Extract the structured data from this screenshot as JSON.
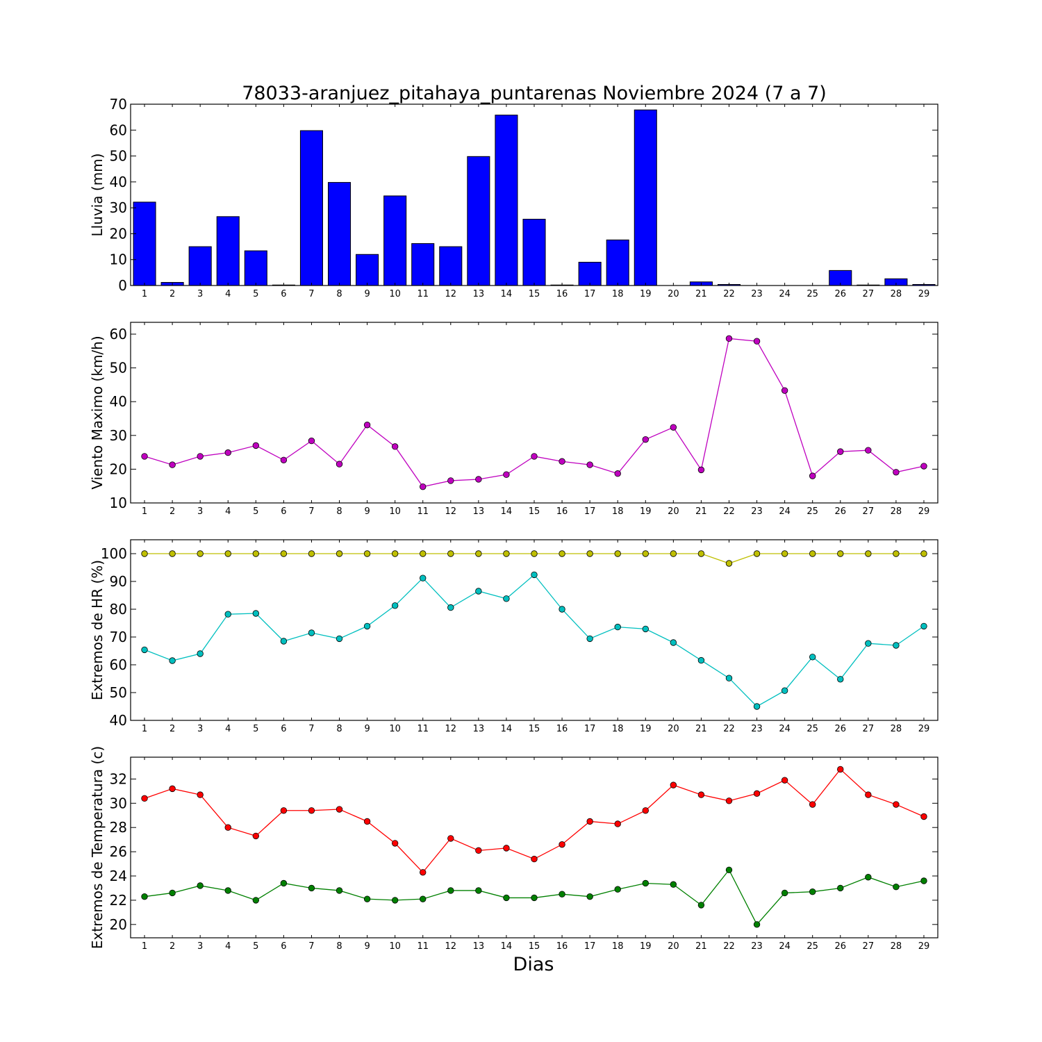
{
  "title": "78033-aranjuez_pitahaya_puntarenas Noviembre 2024  (7 a 7)",
  "xlabel": "Dias",
  "colors": {
    "rain": "#0000ff",
    "wind": "#bf00bf",
    "hr_max": "#bfbf00",
    "hr_min": "#00bfbf",
    "temp_max": "#ff0000",
    "temp_min": "#008000"
  },
  "chart_data": [
    {
      "type": "bar",
      "ylabel": "Lluvia (mm)",
      "ylim": [
        0,
        70
      ],
      "yticks": [
        0,
        10,
        20,
        30,
        40,
        50,
        60,
        70
      ],
      "categories": [
        "1",
        "2",
        "3",
        "4",
        "5",
        "6",
        "7",
        "8",
        "9",
        "10",
        "11",
        "12",
        "13",
        "14",
        "15",
        "16",
        "17",
        "18",
        "19",
        "20",
        "21",
        "22",
        "23",
        "24",
        "25",
        "26",
        "27",
        "28",
        "29"
      ],
      "series": [
        {
          "color_key": "rain",
          "values": [
            32.2,
            1.2,
            15.0,
            26.6,
            13.4,
            0.2,
            59.8,
            39.8,
            12.0,
            34.6,
            16.2,
            15.0,
            49.8,
            65.8,
            25.6,
            0.2,
            9.0,
            17.6,
            67.8,
            0.0,
            1.4,
            0.4,
            0.0,
            0.0,
            0.0,
            5.8,
            0.2,
            2.6,
            0.4
          ]
        }
      ]
    },
    {
      "type": "line",
      "ylabel": "Viento Maximo (km/h)",
      "ylim": [
        10,
        63.5
      ],
      "yticks": [
        10,
        20,
        30,
        40,
        50,
        60
      ],
      "categories": [
        "1",
        "2",
        "3",
        "4",
        "5",
        "6",
        "7",
        "8",
        "9",
        "10",
        "11",
        "12",
        "13",
        "14",
        "15",
        "16",
        "17",
        "18",
        "19",
        "20",
        "21",
        "22",
        "23",
        "24",
        "25",
        "26",
        "27",
        "28",
        "29"
      ],
      "series": [
        {
          "color_key": "wind",
          "values": [
            23.8,
            21.3,
            23.8,
            24.9,
            27.0,
            22.7,
            28.4,
            21.5,
            33.1,
            26.7,
            14.8,
            16.6,
            17.0,
            18.4,
            23.8,
            22.3,
            21.3,
            18.7,
            28.8,
            32.4,
            19.8,
            58.7,
            57.9,
            43.3,
            18.0,
            25.2,
            25.6,
            19.1,
            20.9
          ]
        }
      ]
    },
    {
      "type": "line",
      "ylabel": "Extremos de HR (%)",
      "ylim": [
        40,
        105
      ],
      "yticks": [
        40,
        50,
        60,
        70,
        80,
        90,
        100
      ],
      "categories": [
        "1",
        "2",
        "3",
        "4",
        "5",
        "6",
        "7",
        "8",
        "9",
        "10",
        "11",
        "12",
        "13",
        "14",
        "15",
        "16",
        "17",
        "18",
        "19",
        "20",
        "21",
        "22",
        "23",
        "24",
        "25",
        "26",
        "27",
        "28",
        "29"
      ],
      "series": [
        {
          "color_key": "hr_max",
          "values": [
            100,
            100,
            100,
            100,
            100,
            100,
            100,
            100,
            100,
            100,
            100,
            100,
            100,
            100,
            100,
            100,
            100,
            100,
            100,
            100,
            100,
            96.5,
            100,
            100,
            100,
            100,
            100,
            100,
            100
          ]
        },
        {
          "color_key": "hr_min",
          "values": [
            65.4,
            61.5,
            64.0,
            78.2,
            78.5,
            68.5,
            71.5,
            69.4,
            73.9,
            81.3,
            91.2,
            80.6,
            86.5,
            83.8,
            92.4,
            80.0,
            69.4,
            73.6,
            72.9,
            68.0,
            61.6,
            55.2,
            45.0,
            50.7,
            62.8,
            54.8,
            67.7,
            67.0,
            73.9
          ]
        }
      ]
    },
    {
      "type": "line",
      "ylabel": "Extremos de Temperatura (c)",
      "ylim": [
        18.9,
        33.8
      ],
      "yticks": [
        20,
        22,
        24,
        26,
        28,
        30,
        32
      ],
      "categories": [
        "1",
        "2",
        "3",
        "4",
        "5",
        "6",
        "7",
        "8",
        "9",
        "10",
        "11",
        "12",
        "13",
        "14",
        "15",
        "16",
        "17",
        "18",
        "19",
        "20",
        "21",
        "22",
        "23",
        "24",
        "25",
        "26",
        "27",
        "28",
        "29"
      ],
      "series": [
        {
          "color_key": "temp_max",
          "values": [
            30.4,
            31.2,
            30.7,
            28.0,
            27.3,
            29.4,
            29.4,
            29.5,
            28.5,
            26.7,
            24.3,
            27.1,
            26.1,
            26.3,
            25.4,
            26.6,
            28.5,
            28.3,
            29.4,
            31.5,
            30.7,
            30.2,
            30.8,
            31.9,
            29.9,
            32.8,
            30.7,
            29.9,
            28.9
          ]
        },
        {
          "color_key": "temp_min",
          "values": [
            22.3,
            22.6,
            23.2,
            22.8,
            22.0,
            23.4,
            23.0,
            22.8,
            22.1,
            22.0,
            22.1,
            22.8,
            22.8,
            22.2,
            22.2,
            22.5,
            22.3,
            22.9,
            23.4,
            23.3,
            21.6,
            24.5,
            20.0,
            22.6,
            22.7,
            23.0,
            23.9,
            23.1,
            23.6
          ]
        }
      ]
    }
  ]
}
